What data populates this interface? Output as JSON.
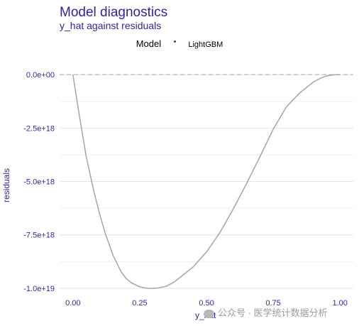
{
  "chart_data": {
    "type": "line",
    "title": "Model diagnostics",
    "subtitle": "y_hat against residuals",
    "xlabel": "y_hat",
    "ylabel": "residuals",
    "xlim": [
      -0.05,
      1.05
    ],
    "ylim": [
      -1.03e+19,
      5e+17
    ],
    "x_ticks": [
      0.0,
      0.25,
      0.5,
      0.75,
      1.0
    ],
    "x_tick_labels": [
      "0.00",
      "0.25",
      "0.50",
      "0.75",
      "1.00"
    ],
    "y_ticks": [
      0,
      -2.5e+18,
      -5e+18,
      -7.5e+18,
      -1e+19
    ],
    "y_tick_labels": [
      "0.0e+00",
      "-2.5e+18",
      "-5.0e+18",
      "-7.5e+18",
      "-1.0e+19"
    ],
    "grid": true,
    "reference_line": {
      "y": 0,
      "style": "dashed",
      "color": "#bbbbbb"
    },
    "legend": {
      "title": "Model",
      "position": "top",
      "entries": [
        "LightGBM"
      ]
    },
    "series": [
      {
        "name": "LightGBM",
        "color": "#a9a9a9",
        "x": [
          0.0,
          0.02,
          0.05,
          0.08,
          0.1,
          0.12,
          0.15,
          0.18,
          0.2,
          0.22,
          0.25,
          0.28,
          0.3,
          0.32,
          0.35,
          0.38,
          0.4,
          0.45,
          0.5,
          0.55,
          0.6,
          0.65,
          0.7,
          0.75,
          0.8,
          0.85,
          0.9,
          0.93,
          0.95,
          0.97,
          0.98,
          1.0
        ],
        "y": [
          0,
          -1.6e+18,
          -3.85e+18,
          -5.55e+18,
          -6.52e+18,
          -7.4e+18,
          -8.45e+18,
          -9.22e+18,
          -9.55e+18,
          -9.75e+18,
          -9.93e+18,
          -1e+19,
          -1e+19,
          -9.98e+18,
          -9.9e+18,
          -9.7e+18,
          -9.5e+18,
          -9e+18,
          -8.3e+18,
          -7.4e+18,
          -6.3e+18,
          -5.1e+18,
          -3.85e+18,
          -2.55e+18,
          -1.5e+18,
          -8.5e+17,
          -3.5e+17,
          -1.5e+17,
          -6e+16,
          -2e+16,
          -1e+16,
          0
        ]
      }
    ]
  },
  "watermark": {
    "text": "公众号 · 医学统计数据分析"
  }
}
